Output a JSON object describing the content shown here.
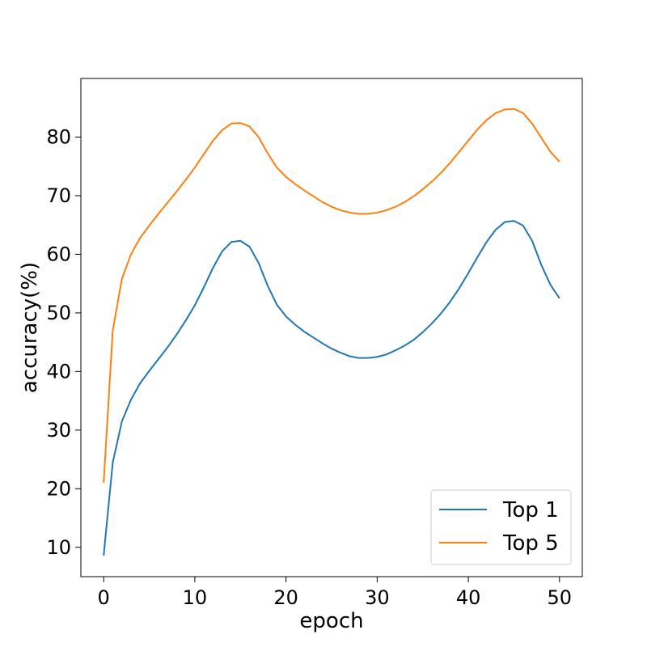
{
  "chart_data": {
    "type": "line",
    "title": "",
    "xlabel": "epoch",
    "ylabel": "accuracy(%)",
    "xlim": [
      -2.5,
      52.5
    ],
    "ylim": [
      5,
      90
    ],
    "x_ticks": [
      0,
      10,
      20,
      30,
      40,
      50
    ],
    "y_ticks": [
      10,
      20,
      30,
      40,
      50,
      60,
      70,
      80
    ],
    "grid": false,
    "legend_position": "lower-right",
    "x": [
      0,
      1,
      2,
      3,
      4,
      5,
      6,
      7,
      8,
      9,
      10,
      11,
      12,
      13,
      14,
      15,
      16,
      17,
      18,
      19,
      20,
      21,
      22,
      23,
      24,
      25,
      26,
      27,
      28,
      29,
      30,
      31,
      32,
      33,
      34,
      35,
      36,
      37,
      38,
      39,
      40,
      41,
      42,
      43,
      44,
      45,
      46,
      47,
      48,
      49,
      50
    ],
    "series": [
      {
        "name": "Top 1",
        "color": "#1f77b4",
        "values": [
          8.6,
          24.5,
          31.5,
          35.2,
          38.0,
          40.1,
          42.1,
          44.1,
          46.3,
          48.7,
          51.3,
          54.4,
          57.7,
          60.5,
          62.1,
          62.3,
          61.3,
          58.5,
          54.6,
          51.4,
          49.4,
          48.0,
          46.8,
          45.8,
          44.8,
          43.9,
          43.2,
          42.6,
          42.3,
          42.3,
          42.5,
          42.9,
          43.6,
          44.4,
          45.4,
          46.7,
          48.2,
          49.9,
          51.9,
          54.2,
          56.8,
          59.5,
          62.1,
          64.2,
          65.5,
          65.7,
          64.9,
          62.3,
          58.2,
          54.8,
          52.5
        ]
      },
      {
        "name": "Top 5",
        "color": "#ff7f0e",
        "values": [
          21.0,
          47.0,
          55.8,
          60.0,
          62.8,
          64.9,
          66.9,
          68.8,
          70.7,
          72.7,
          74.8,
          77.1,
          79.4,
          81.2,
          82.3,
          82.4,
          81.8,
          80.0,
          77.2,
          74.8,
          73.2,
          72.0,
          70.9,
          69.9,
          68.9,
          68.1,
          67.5,
          67.1,
          66.9,
          66.9,
          67.1,
          67.5,
          68.1,
          68.9,
          69.9,
          71.1,
          72.4,
          73.9,
          75.6,
          77.5,
          79.4,
          81.3,
          82.9,
          84.1,
          84.7,
          84.8,
          84.1,
          82.3,
          79.9,
          77.5,
          75.8
        ]
      }
    ]
  }
}
